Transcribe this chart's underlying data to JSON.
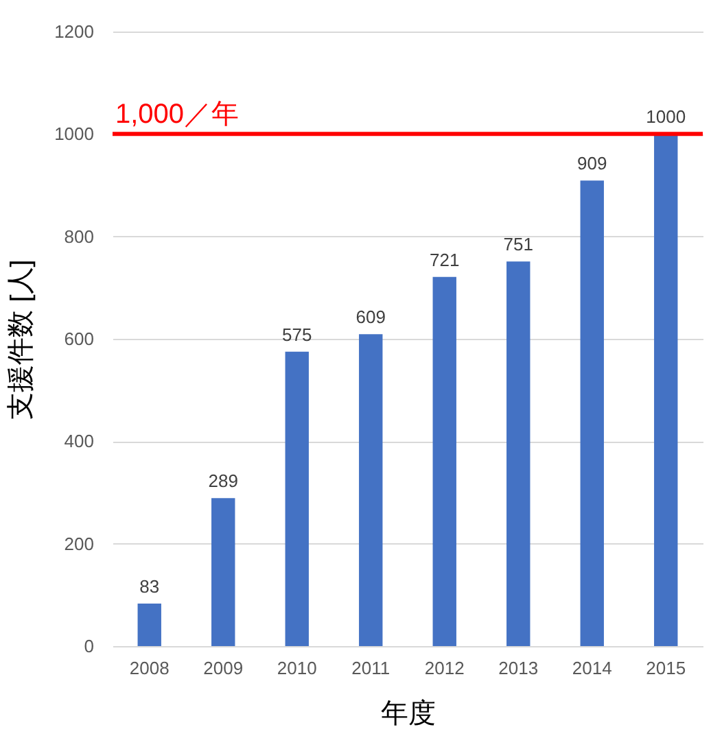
{
  "chart_data": {
    "type": "bar",
    "categories": [
      "2008",
      "2009",
      "2010",
      "2011",
      "2012",
      "2013",
      "2014",
      "2015"
    ],
    "values": [
      83,
      289,
      575,
      609,
      721,
      751,
      909,
      1000
    ],
    "color": "#4472c4",
    "xlabel": "年度",
    "ylabel": "支援件数 [人]",
    "ylim": [
      0,
      1200
    ],
    "yticks": [
      0,
      200,
      400,
      600,
      800,
      1000,
      1200
    ],
    "grid": "y",
    "data_labels": true,
    "ref_lines": [
      {
        "axis": "y",
        "value": 1000,
        "label": "1,000／年",
        "color": "#ff0000"
      }
    ]
  }
}
